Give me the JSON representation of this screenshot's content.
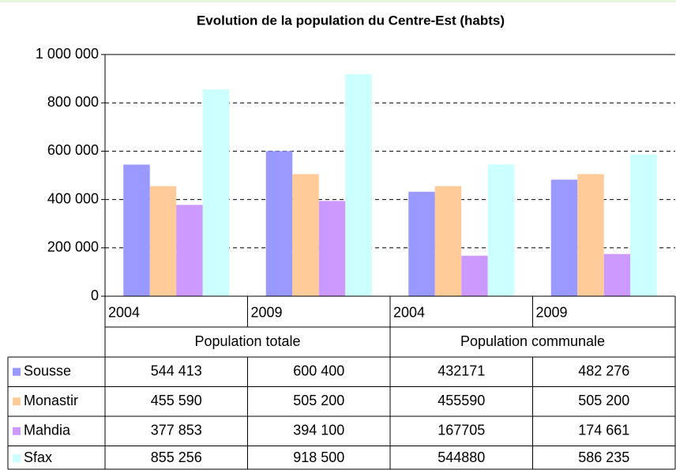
{
  "chart_data": {
    "type": "bar",
    "title": "Evolution de la population du Centre-Est (habts)",
    "categories": [
      "2004",
      "2009",
      "2004",
      "2009"
    ],
    "category_groups": [
      "Population totale",
      "Population communale"
    ],
    "series": [
      {
        "name": "Sousse",
        "color": "#9999ff",
        "values": [
          544413,
          600400,
          432171,
          482276
        ],
        "value_labels": [
          "544 413",
          "600 400",
          "432171",
          "482 276"
        ]
      },
      {
        "name": "Monastir",
        "color": "#ffcc99",
        "values": [
          455590,
          505200,
          455590,
          505200
        ],
        "value_labels": [
          "455 590",
          "505 200",
          "455590",
          "505 200"
        ]
      },
      {
        "name": "Mahdia",
        "color": "#cc99ff",
        "values": [
          377853,
          394100,
          167705,
          174661
        ],
        "value_labels": [
          "377 853",
          "394 100",
          "167705",
          "174 661"
        ]
      },
      {
        "name": "Sfax",
        "color": "#ccffff",
        "values": [
          855256,
          918500,
          544880,
          586235
        ],
        "value_labels": [
          "855 256",
          "918 500",
          "544880",
          "586 235"
        ]
      }
    ],
    "ylim": [
      0,
      1000000
    ],
    "yticks": [
      0,
      {
        "value": 200000,
        "label": "200 000"
      },
      {
        "value": 400000,
        "label": "400 000"
      },
      {
        "value": 600000,
        "label": "600 000"
      },
      {
        "value": 800000,
        "label": "800 000"
      },
      {
        "value": 1000000,
        "label": "1 000 000"
      }
    ],
    "grid": true
  }
}
